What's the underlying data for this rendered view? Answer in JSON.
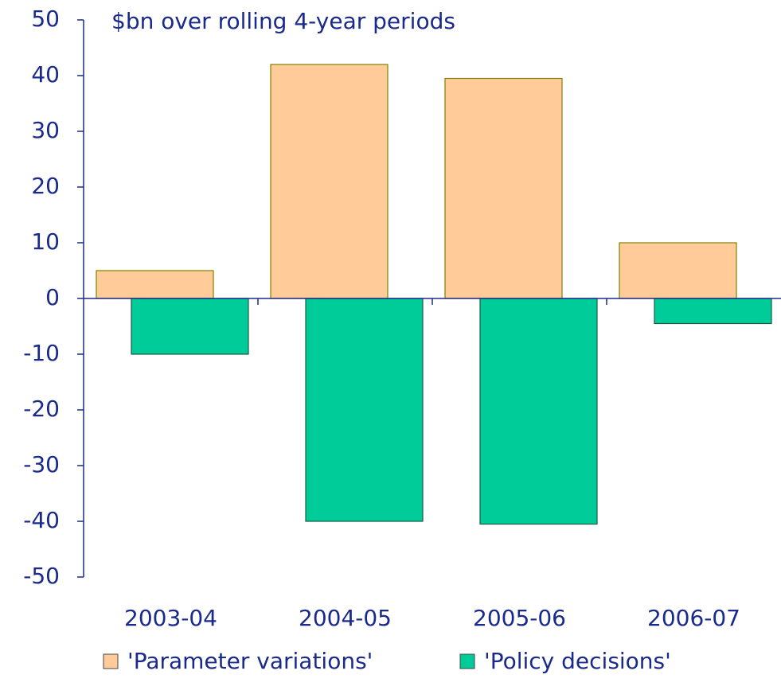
{
  "chart_data": {
    "type": "bar",
    "title": "$bn over rolling 4-year periods",
    "categories": [
      "2003-04",
      "2004-05",
      "2005-06",
      "2006-07"
    ],
    "series": [
      {
        "name": "'Parameter variations'",
        "color": "#ffcc99",
        "values": [
          5,
          42,
          39.5,
          10
        ]
      },
      {
        "name": "'Policy decisions'",
        "color": "#00cc99",
        "values": [
          -10,
          -40,
          -40.5,
          -4.5
        ]
      }
    ],
    "ylim": [
      -50,
      50
    ],
    "yticks": [
      -50,
      -40,
      -30,
      -20,
      -10,
      0,
      10,
      20,
      30,
      40,
      50
    ]
  }
}
